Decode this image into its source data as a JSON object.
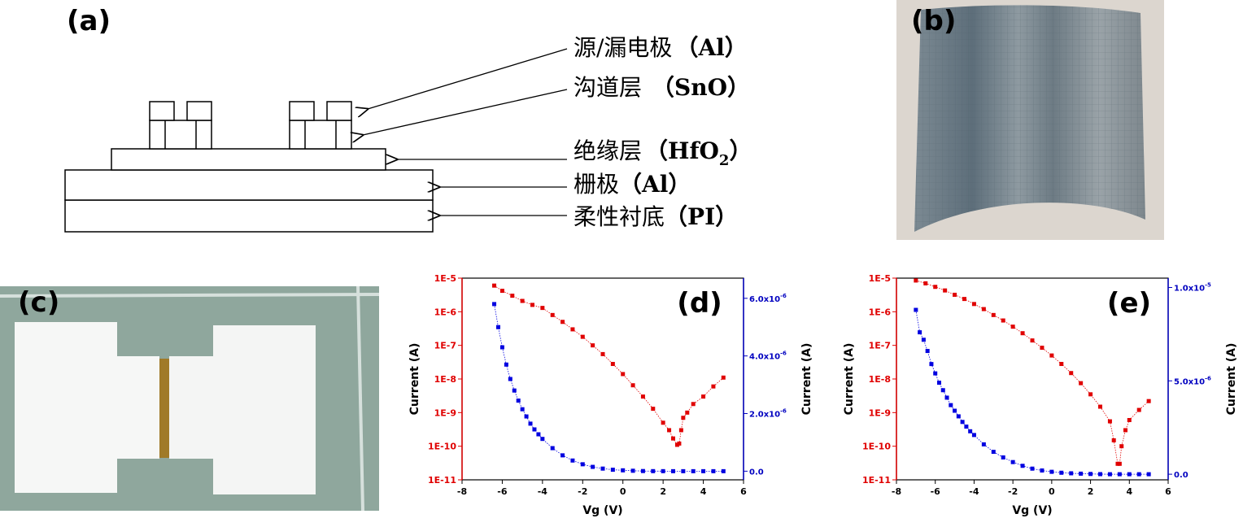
{
  "panels": {
    "a": {
      "label": "(a)",
      "layers": [
        {
          "name": "源/漏电极",
          "material": "（Al）"
        },
        {
          "name": "沟道层",
          "material": "（SnO）"
        },
        {
          "name": "绝缘层",
          "material": "（HfO",
          "subscript": "2",
          "close": "）"
        },
        {
          "name": "栅极",
          "material": "（Al）"
        },
        {
          "name": "柔性衬底",
          "material": "（PI）"
        }
      ]
    },
    "b": {
      "label": "(b)"
    },
    "c": {
      "label": "(c)"
    },
    "d": {
      "label": "(d)"
    },
    "e": {
      "label": "(e)"
    }
  },
  "colors": {
    "log_series": "#e00000",
    "lin_series": "#0000e0",
    "left_axis": "#e00000",
    "right_axis": "#0000c0",
    "photo_bg": "#8fa79d",
    "channel": "#a07a28"
  },
  "chart_data": [
    {
      "id": "d",
      "type": "scatter",
      "xlabel": "Vg (V)",
      "ylabel_left": "Current (A)",
      "ylabel_right": "Current (A)",
      "xlim": [
        -8,
        6
      ],
      "x_ticks": [
        "-8",
        "-6",
        "-4",
        "-2",
        "0",
        "2",
        "4",
        "6"
      ],
      "y_left_scale": "log",
      "y_left_lim": [
        1e-11,
        1e-05
      ],
      "y_left_ticks": [
        "1E-11",
        "1E-10",
        "1E-9",
        "1E-8",
        "1E-7",
        "1E-6",
        "1E-5"
      ],
      "y_right_lim": [
        -3e-07,
        6.7e-06
      ],
      "y_right_ticks": [
        {
          "base": "0.0",
          "exp": ""
        },
        {
          "base": "2.0x10",
          "exp": "-6"
        },
        {
          "base": "4.0x10",
          "exp": "-6"
        },
        {
          "base": "6.0x10",
          "exp": "-6"
        }
      ],
      "y_right_tick_values": [
        0,
        2e-06,
        4e-06,
        6e-06
      ],
      "series": [
        {
          "axis": "left",
          "x": [
            -6.4,
            -6.0,
            -5.5,
            -5.0,
            -4.5,
            -4.0,
            -3.5,
            -3.0,
            -2.5,
            -2.0,
            -1.5,
            -1.0,
            -0.5,
            0.0,
            0.5,
            1.0,
            1.5,
            2.0,
            2.3,
            2.5,
            2.7,
            2.8,
            2.9,
            3.0,
            3.2,
            3.5,
            4.0,
            4.5,
            5.0
          ],
          "y": [
            6e-06,
            4.2e-06,
            3e-06,
            2.1e-06,
            1.6e-06,
            1.3e-06,
            8e-07,
            5e-07,
            3e-07,
            1.8e-07,
            1e-07,
            5.5e-08,
            2.8e-08,
            1.4e-08,
            6.5e-09,
            3e-09,
            1.3e-09,
            5e-10,
            3e-10,
            1.7e-10,
            1.1e-10,
            1.2e-10,
            3e-10,
            7e-10,
            1e-09,
            1.8e-09,
            3e-09,
            6e-09,
            1.1e-08
          ]
        },
        {
          "axis": "right",
          "x": [
            -6.4,
            -6.2,
            -6.0,
            -5.8,
            -5.6,
            -5.4,
            -5.2,
            -5.0,
            -4.8,
            -4.6,
            -4.4,
            -4.2,
            -4.0,
            -3.5,
            -3.0,
            -2.5,
            -2.0,
            -1.5,
            -1.0,
            -0.5,
            0.0,
            0.5,
            1.0,
            1.5,
            2.0,
            2.5,
            3.0,
            3.5,
            4.0,
            4.5,
            5.0
          ],
          "y": [
            5.8e-06,
            5e-06,
            4.3e-06,
            3.7e-06,
            3.2e-06,
            2.8e-06,
            2.45e-06,
            2.15e-06,
            1.9e-06,
            1.65e-06,
            1.45e-06,
            1.28e-06,
            1.12e-06,
            8e-07,
            5.5e-07,
            3.7e-07,
            2.4e-07,
            1.5e-07,
            9e-08,
            5e-08,
            3e-08,
            1.5e-08,
            5e-09,
            2e-09,
            1e-09,
            0,
            0,
            0,
            0,
            0,
            0
          ]
        }
      ]
    },
    {
      "id": "e",
      "type": "scatter",
      "xlabel": "Vg (V)",
      "ylabel_left": "Current (A)",
      "ylabel_right": "Current (A)",
      "xlim": [
        -8,
        6
      ],
      "x_ticks": [
        "-8",
        "-6",
        "-4",
        "-2",
        "0",
        "2",
        "4",
        "6"
      ],
      "y_left_scale": "log",
      "y_left_lim": [
        1e-11,
        1e-05
      ],
      "y_left_ticks": [
        "1E-11",
        "1E-10",
        "1E-9",
        "1E-8",
        "1E-7",
        "1E-6",
        "1E-5"
      ],
      "y_right_lim": [
        -3e-07,
        1.05e-05
      ],
      "y_right_ticks": [
        {
          "base": "0.0",
          "exp": ""
        },
        {
          "base": "5.0x10",
          "exp": "-6"
        },
        {
          "base": "1.0x10",
          "exp": "-5"
        }
      ],
      "y_right_tick_values": [
        0,
        5e-06,
        1e-05
      ],
      "series": [
        {
          "axis": "left",
          "x": [
            -7.0,
            -6.5,
            -6.0,
            -5.5,
            -5.0,
            -4.5,
            -4.0,
            -3.5,
            -3.0,
            -2.5,
            -2.0,
            -1.5,
            -1.0,
            -0.5,
            0.0,
            0.5,
            1.0,
            1.5,
            2.0,
            2.5,
            3.0,
            3.2,
            3.4,
            3.5,
            3.6,
            3.8,
            4.0,
            4.5,
            5.0
          ],
          "y": [
            8.5e-06,
            7e-06,
            5.5e-06,
            4.3e-06,
            3.2e-06,
            2.4e-06,
            1.7e-06,
            1.2e-06,
            8e-07,
            5.5e-07,
            3.6e-07,
            2.3e-07,
            1.4e-07,
            8.5e-08,
            5e-08,
            2.8e-08,
            1.5e-08,
            7.5e-09,
            3.5e-09,
            1.5e-09,
            5.5e-10,
            1.5e-10,
            3e-11,
            3e-11,
            1e-10,
            3e-10,
            6e-10,
            1.2e-09,
            2.2e-09
          ]
        },
        {
          "axis": "right",
          "x": [
            -7.0,
            -6.8,
            -6.6,
            -6.4,
            -6.2,
            -6.0,
            -5.8,
            -5.6,
            -5.4,
            -5.2,
            -5.0,
            -4.8,
            -4.6,
            -4.4,
            -4.2,
            -4.0,
            -3.5,
            -3.0,
            -2.5,
            -2.0,
            -1.5,
            -1.0,
            -0.5,
            0.0,
            0.5,
            1.0,
            1.5,
            2.0,
            2.5,
            3.0,
            3.5,
            4.0,
            4.5,
            5.0
          ],
          "y": [
            8.8e-06,
            7.6e-06,
            7.2e-06,
            6.6e-06,
            5.9e-06,
            5.4e-06,
            4.9e-06,
            4.5e-06,
            4.1e-06,
            3.7e-06,
            3.4e-06,
            3.1e-06,
            2.8e-06,
            2.55e-06,
            2.3e-06,
            2.1e-06,
            1.6e-06,
            1.2e-06,
            9e-07,
            6.5e-07,
            4.5e-07,
            3e-07,
            2e-07,
            1.3e-07,
            8e-08,
            5e-08,
            3e-08,
            1.5e-08,
            5e-09,
            0,
            0,
            0,
            0,
            0
          ]
        }
      ]
    }
  ]
}
